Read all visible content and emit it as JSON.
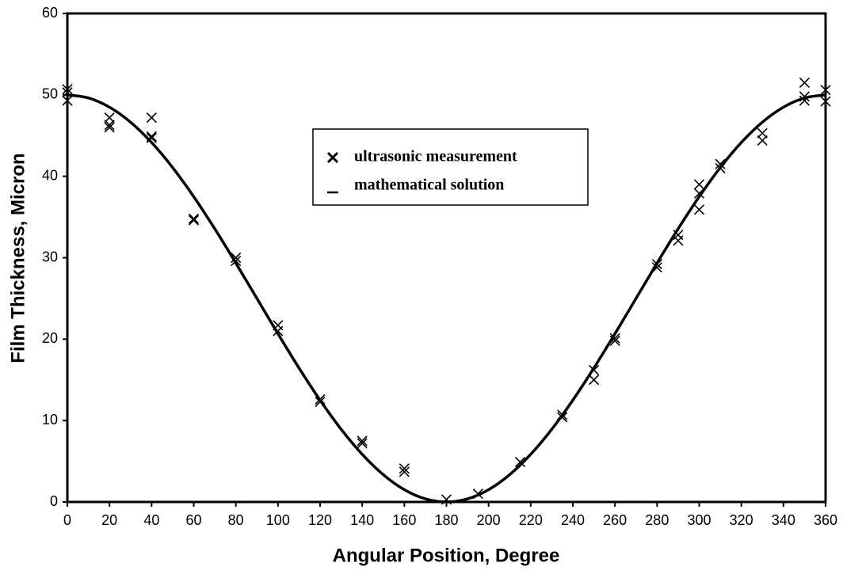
{
  "chart_data": {
    "type": "scatter",
    "x_label": "Angular Position, Degree",
    "y_label": "Film Thickness, Micron",
    "xlim": [
      0,
      360
    ],
    "ylim": [
      0,
      60
    ],
    "xticks": [
      0,
      20,
      40,
      60,
      80,
      100,
      120,
      140,
      160,
      180,
      200,
      220,
      240,
      260,
      280,
      300,
      320,
      340,
      360
    ],
    "yticks": [
      0,
      10,
      20,
      30,
      40,
      50,
      60
    ],
    "grid": false,
    "legend": "upper center",
    "series": [
      {
        "name": "ultrasonic measurement",
        "type": "scatter",
        "marker": "x",
        "color": "#000000",
        "x": [
          0,
          0,
          0,
          20,
          20,
          20,
          40,
          40,
          40,
          60,
          60,
          80,
          80,
          100,
          100,
          120,
          120,
          140,
          140,
          160,
          160,
          180,
          195,
          215,
          235,
          235,
          250,
          250,
          260,
          260,
          280,
          280,
          290,
          290,
          300,
          300,
          300,
          310,
          310,
          330,
          330,
          350,
          350,
          350,
          360,
          360
        ],
        "values": [
          50.7,
          49.3,
          50.3,
          47.2,
          46.0,
          46.3,
          47.2,
          44.7,
          44.9,
          34.6,
          34.8,
          29.6,
          30.0,
          21.0,
          21.7,
          12.3,
          12.6,
          7.2,
          7.5,
          3.7,
          4.1,
          0.3,
          1.0,
          4.9,
          10.4,
          10.7,
          15.0,
          16.2,
          19.8,
          20.1,
          28.8,
          29.2,
          32.1,
          32.8,
          39.0,
          35.9,
          37.9,
          41.0,
          41.5,
          44.4,
          45.3,
          51.5,
          49.3,
          49.8,
          49.2,
          50.6
        ]
      },
      {
        "name": "mathematical solution",
        "type": "line",
        "color": "#000000",
        "x": [
          0,
          10,
          20,
          30,
          40,
          50,
          60,
          70,
          80,
          90,
          100,
          110,
          120,
          130,
          140,
          150,
          160,
          170,
          180,
          190,
          200,
          210,
          220,
          230,
          240,
          250,
          260,
          270,
          280,
          290,
          300,
          310,
          320,
          330,
          340,
          350,
          360
        ],
        "values": [
          50,
          49.62,
          48.49,
          46.65,
          44.15,
          41.07,
          37.5,
          33.55,
          29.34,
          25,
          20.66,
          16.45,
          12.5,
          8.93,
          5.85,
          3.35,
          1.51,
          0.38,
          0,
          0.38,
          1.51,
          3.35,
          5.85,
          8.93,
          12.5,
          16.45,
          20.66,
          25,
          29.34,
          33.55,
          37.5,
          41.07,
          44.15,
          46.65,
          48.49,
          49.62,
          50
        ]
      }
    ]
  }
}
